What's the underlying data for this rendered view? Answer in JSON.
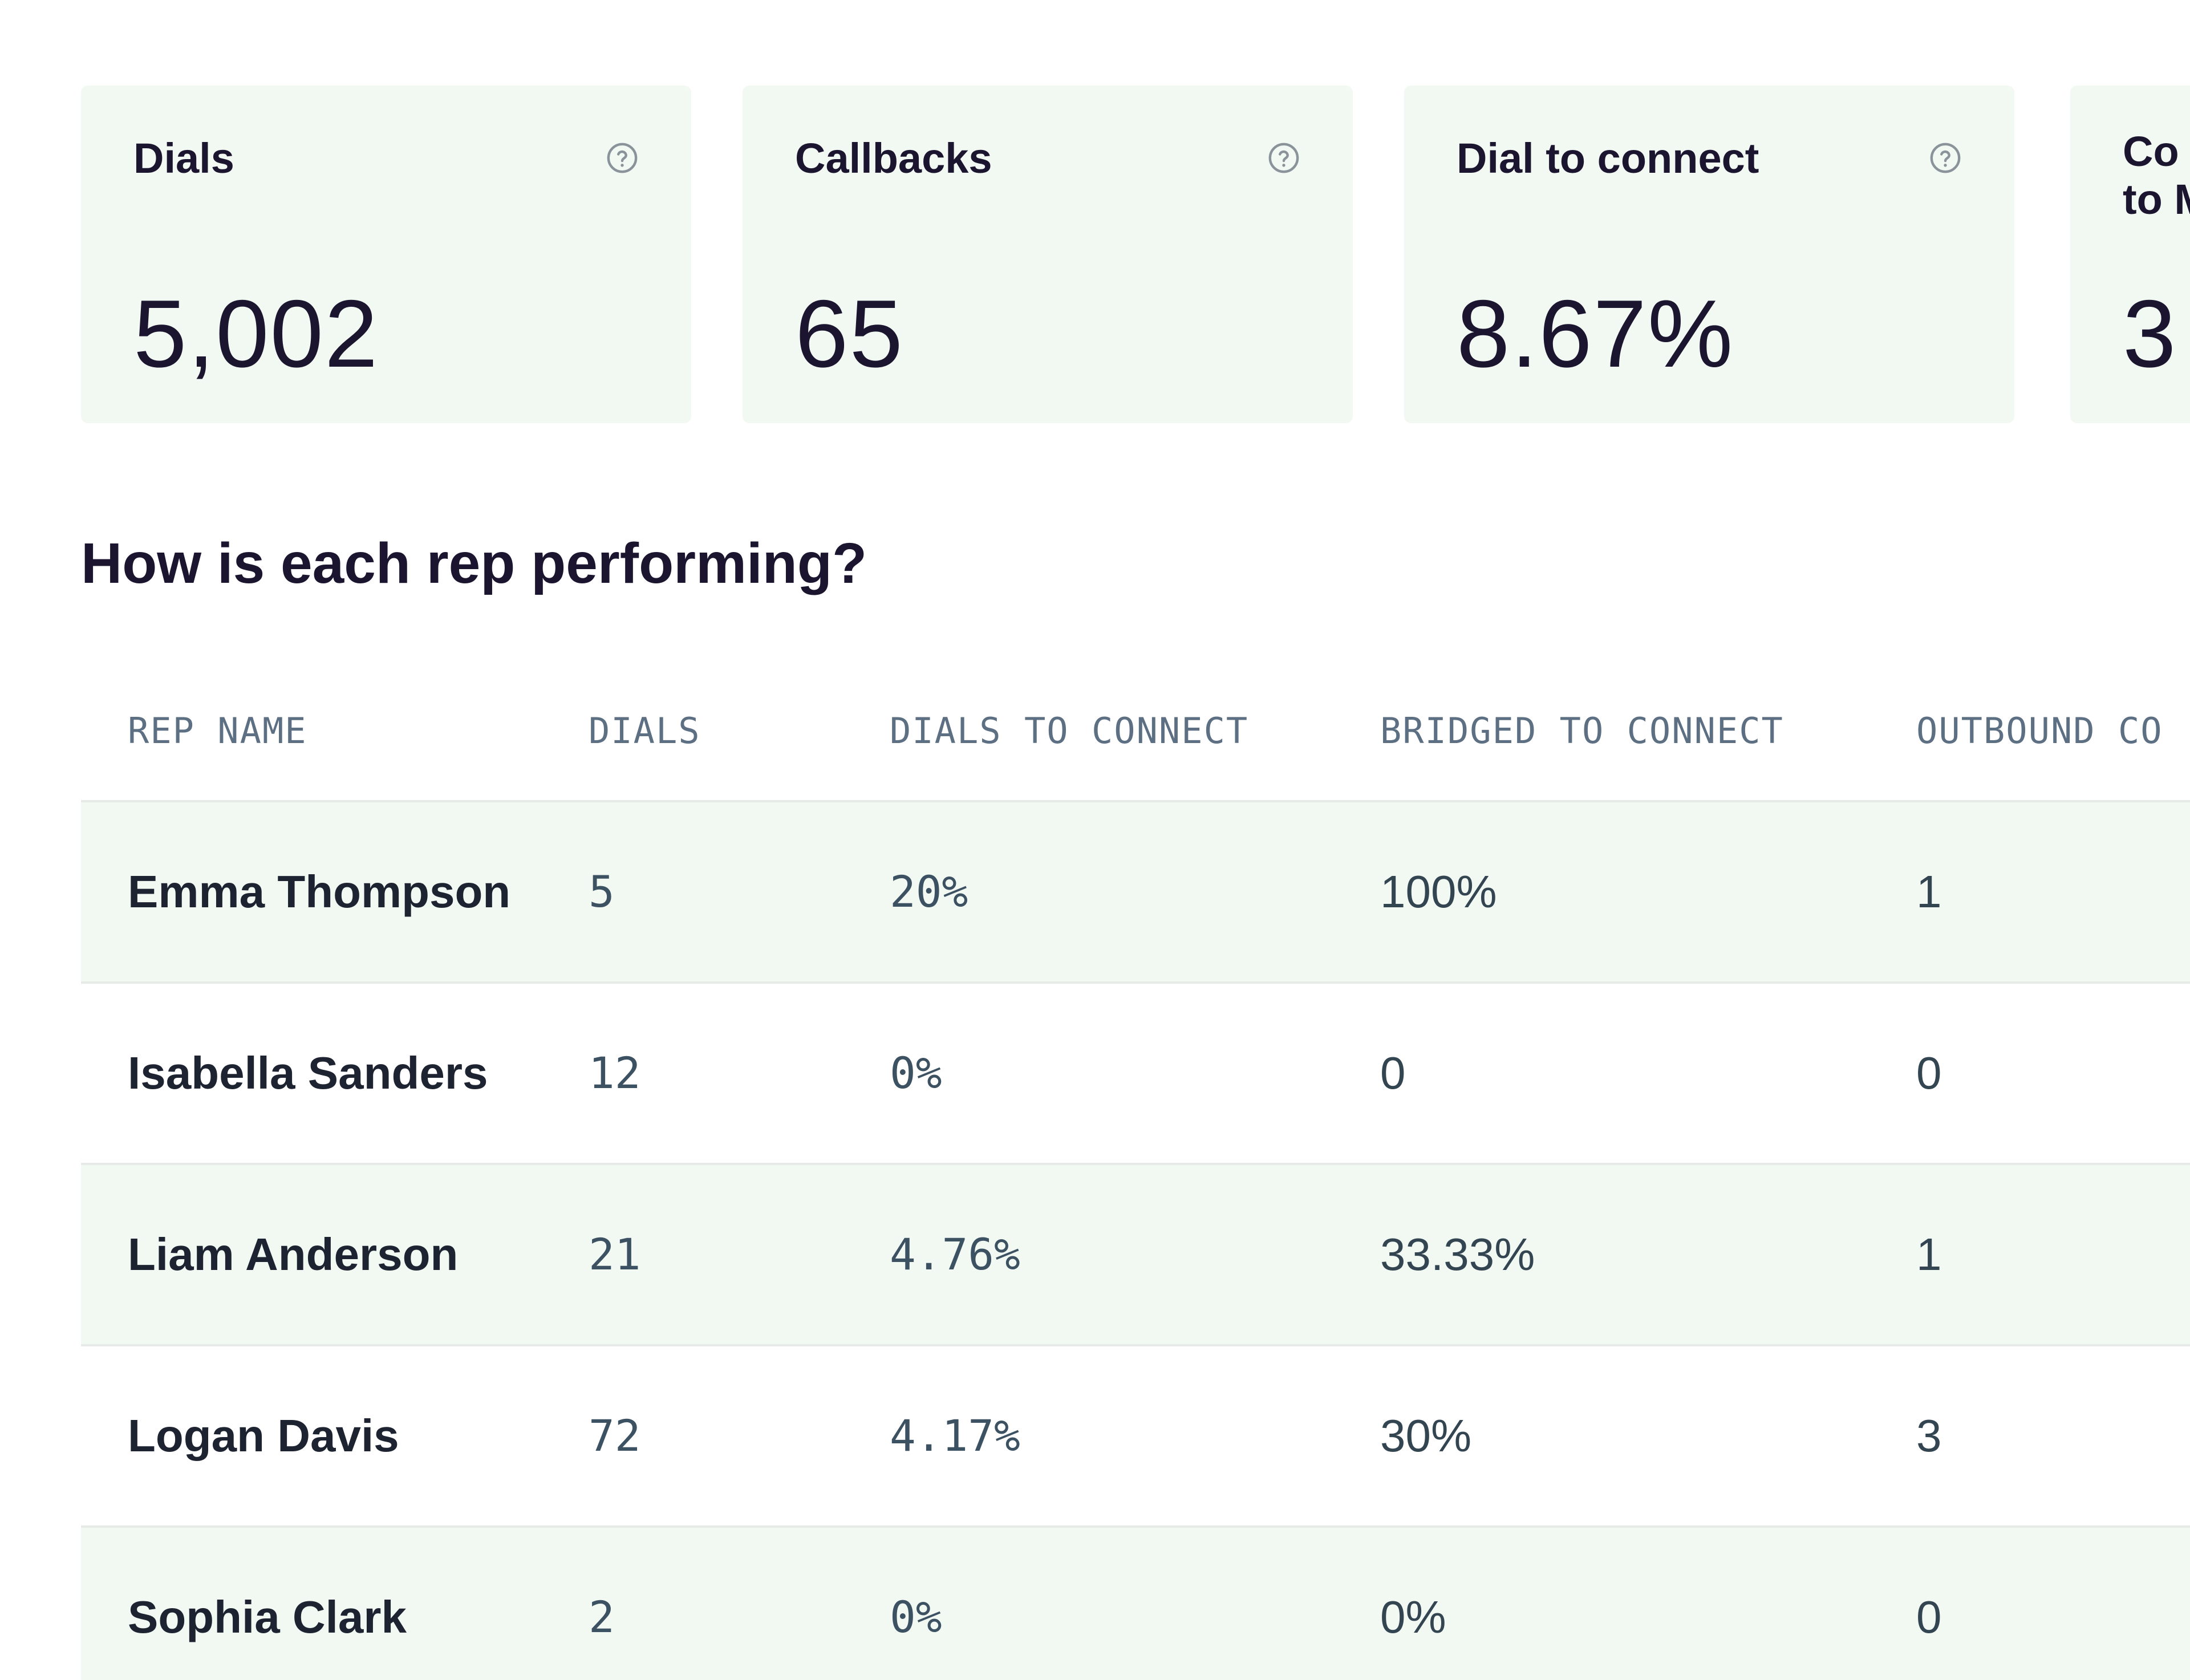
{
  "stats": [
    {
      "title": "Dials",
      "value": "5,002",
      "icon": "help-circle-icon"
    },
    {
      "title": "Callbacks",
      "value": "65",
      "icon": "help-circle-icon"
    },
    {
      "title": "Dial to connect",
      "value": "8.67%",
      "icon": "help-circle-icon"
    },
    {
      "title": "Co\nto M",
      "value": "3",
      "icon": "help-circle-icon"
    }
  ],
  "section": {
    "title": "How is each rep performing?"
  },
  "table": {
    "headers": [
      "REP NAME",
      "DIALS",
      "DIALS TO CONNECT",
      "BRIDGED TO CONNECT",
      "OUTBOUND CO"
    ],
    "rows": [
      [
        "Emma Thompson",
        "5",
        "20%",
        "100%",
        "1"
      ],
      [
        "Isabella Sanders",
        "12",
        "0%",
        "0",
        "0"
      ],
      [
        "Liam Anderson",
        "21",
        "4.76%",
        "33.33%",
        "1"
      ],
      [
        "Logan Davis",
        "72",
        "4.17%",
        "30%",
        "3"
      ],
      [
        "Sophia Clark",
        "2",
        "0%",
        "0%",
        "0"
      ]
    ]
  },
  "colors": {
    "card_bg": "#f2f8f2",
    "row_alt_bg": "#f2f8f2",
    "text_dark": "#1b1530",
    "header_text": "#5d6f82"
  }
}
